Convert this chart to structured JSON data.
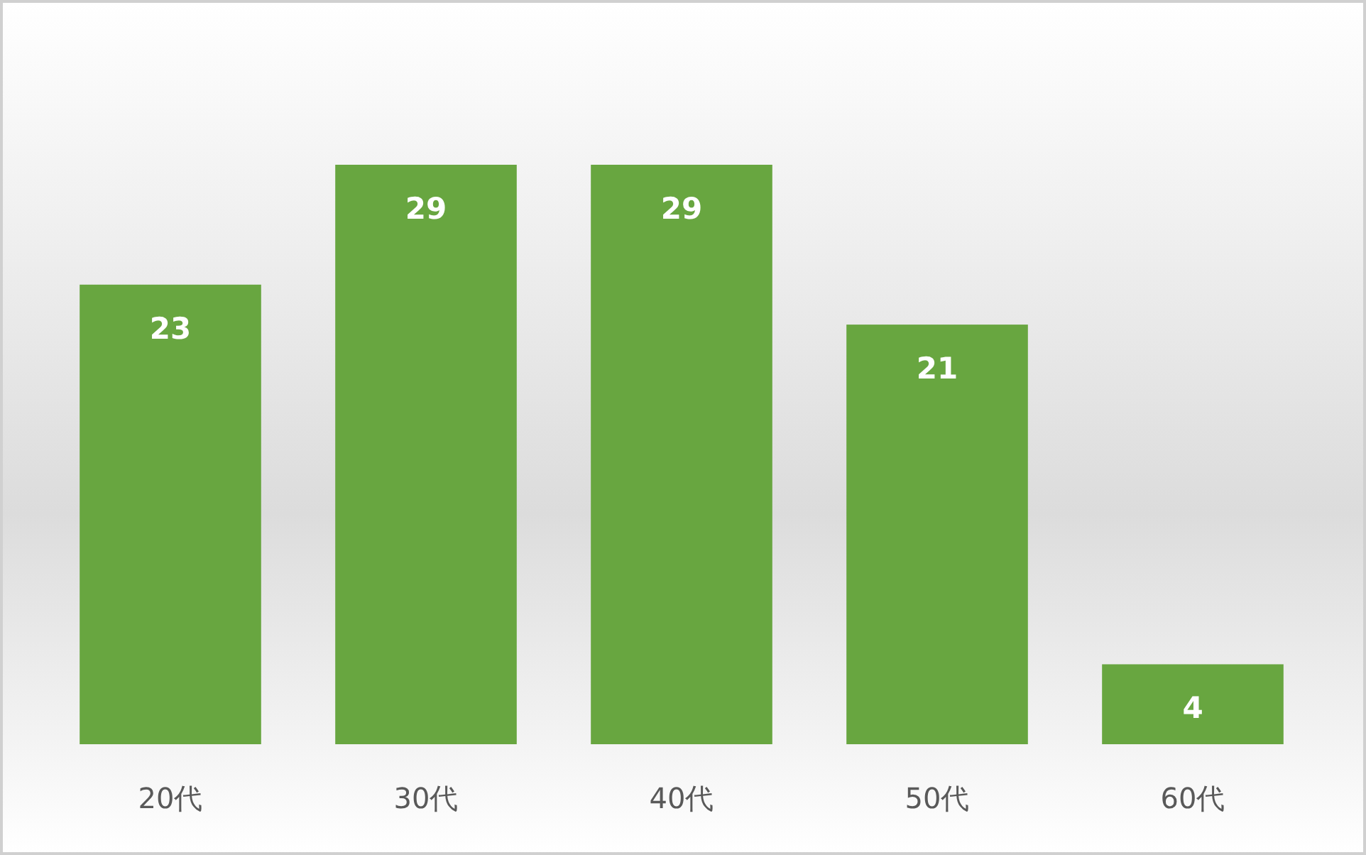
{
  "chart_data": {
    "type": "bar",
    "categories": [
      "20代",
      "30代",
      "40代",
      "50代",
      "60代"
    ],
    "values": [
      23,
      29,
      29,
      21,
      4
    ],
    "color": "#68a640",
    "data_labels": true
  }
}
